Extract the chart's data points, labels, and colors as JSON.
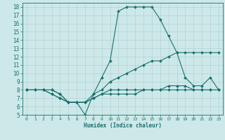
{
  "xlabel": "Humidex (Indice chaleur)",
  "bg_color": "#cde8e8",
  "grid_color": "#b0cccc",
  "line_color": "#1a7070",
  "xlim": [
    -0.5,
    23.5
  ],
  "ylim": [
    5,
    18.5
  ],
  "xticks": [
    0,
    1,
    2,
    3,
    4,
    5,
    6,
    7,
    8,
    9,
    10,
    11,
    12,
    13,
    14,
    15,
    16,
    17,
    18,
    19,
    20,
    21,
    22,
    23
  ],
  "yticks": [
    5,
    6,
    7,
    8,
    9,
    10,
    11,
    12,
    13,
    14,
    15,
    16,
    17,
    18
  ],
  "series": [
    {
      "x": [
        0,
        1,
        2,
        3,
        4,
        5,
        6,
        7,
        8,
        9,
        10,
        11,
        12,
        13,
        14,
        15,
        16,
        17,
        18,
        19,
        20,
        21,
        22,
        23
      ],
      "y": [
        8,
        8,
        8,
        8,
        7.5,
        6.5,
        6.5,
        5,
        7.5,
        9.5,
        11.5,
        17.5,
        18,
        18,
        18,
        18,
        16.5,
        14.5,
        12.5,
        9.5,
        8.5,
        8.5,
        9.5,
        8
      ]
    },
    {
      "x": [
        0,
        1,
        2,
        3,
        4,
        5,
        6,
        7,
        8,
        9,
        10,
        11,
        12,
        13,
        14,
        15,
        16,
        17,
        18,
        19,
        20,
        21,
        22,
        23
      ],
      "y": [
        8,
        8,
        8,
        8,
        7.5,
        6.5,
        6.5,
        6.5,
        7.5,
        8,
        9,
        9.5,
        10,
        10.5,
        11,
        11.5,
        11.5,
        12,
        12.5,
        12.5,
        12.5,
        12.5,
        12.5,
        12.5
      ]
    },
    {
      "x": [
        0,
        1,
        2,
        3,
        4,
        5,
        6,
        7,
        8,
        9,
        10,
        11,
        12,
        13,
        14,
        15,
        16,
        17,
        18,
        19,
        20,
        21,
        22,
        23
      ],
      "y": [
        8,
        8,
        8,
        7.5,
        7,
        6.5,
        6.5,
        6.5,
        7,
        7.5,
        8,
        8,
        8,
        8,
        8,
        8,
        8,
        8.5,
        8.5,
        8.5,
        8,
        8,
        8,
        8
      ]
    },
    {
      "x": [
        0,
        1,
        2,
        3,
        4,
        5,
        6,
        7,
        8,
        9,
        10,
        11,
        12,
        13,
        14,
        15,
        16,
        17,
        18,
        19,
        20,
        21,
        22,
        23
      ],
      "y": [
        8,
        8,
        8,
        7.5,
        7,
        6.5,
        6.5,
        6.5,
        7,
        7.5,
        7.5,
        7.5,
        7.5,
        7.5,
        8,
        8,
        8,
        8,
        8,
        8,
        8,
        8,
        8,
        8
      ]
    }
  ]
}
